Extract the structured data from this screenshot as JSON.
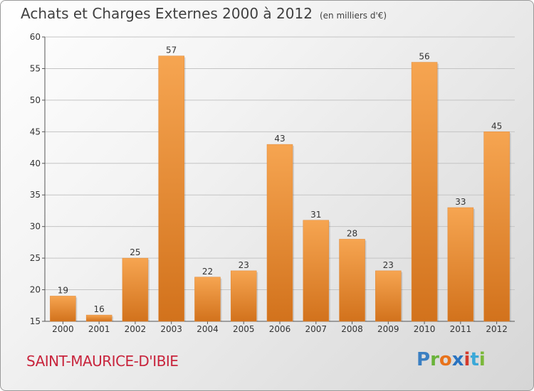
{
  "header": {
    "title": "Achats et Charges Externes 2000 à 2012",
    "unit": "(en milliers d'€)"
  },
  "footer": {
    "commune": "SAINT-MAURICE-D'IBIE",
    "logo": "Proxiti"
  },
  "colors": {
    "bar_light": "#f6a551",
    "bar_dark": "#d2721c",
    "commune": "#c8243c"
  },
  "chart_data": {
    "type": "bar",
    "title": "Achats et Charges Externes 2000 à 2012",
    "subtitle": "(en milliers d'€)",
    "xlabel": "",
    "ylabel": "",
    "categories": [
      "2000",
      "2001",
      "2002",
      "2003",
      "2004",
      "2005",
      "2006",
      "2007",
      "2008",
      "2009",
      "2010",
      "2011",
      "2012"
    ],
    "values": [
      19,
      16,
      25,
      57,
      22,
      23,
      43,
      31,
      28,
      23,
      56,
      33,
      45
    ],
    "ylim": [
      15,
      60
    ],
    "yticks": [
      15,
      20,
      25,
      30,
      35,
      40,
      45,
      50,
      55,
      60
    ],
    "grid": true
  }
}
